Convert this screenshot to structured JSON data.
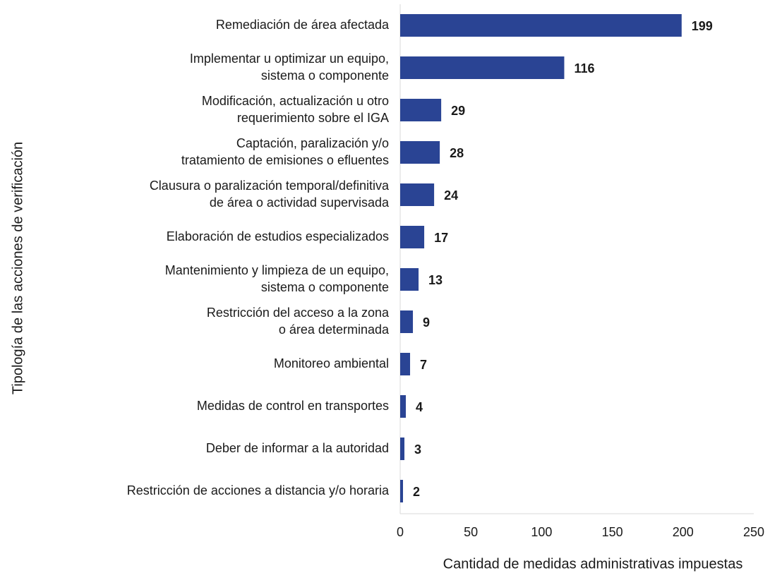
{
  "chart_data": {
    "type": "bar",
    "orientation": "horizontal",
    "xlabel": "Cantidad de medidas administrativas impuestas",
    "ylabel": "Tipología de las acciones de verificación",
    "categories": [
      [
        "Remediación de área afectada"
      ],
      [
        "Implementar u optimizar un equipo,",
        "sistema o componente"
      ],
      [
        "Modificación, actualización u otro",
        "requerimiento sobre el IGA"
      ],
      [
        "Captación, paralización y/o",
        "tratamiento de emisiones o efluentes"
      ],
      [
        "Clausura o paralización temporal/definitiva",
        "de área o actividad supervisada"
      ],
      [
        "Elaboración de estudios especializados"
      ],
      [
        "Mantenimiento y limpieza de un equipo,",
        "sistema o componente"
      ],
      [
        "Restricción del acceso a la zona",
        "o área determinada"
      ],
      [
        "Monitoreo ambiental"
      ],
      [
        "Medidas de control en transportes"
      ],
      [
        "Deber de informar a la autoridad"
      ],
      [
        "Restricción de acciones a distancia y/o horaria"
      ]
    ],
    "values": [
      199,
      116,
      29,
      28,
      24,
      17,
      13,
      9,
      7,
      4,
      3,
      2
    ],
    "color": "#2a4494",
    "xlim": [
      0,
      250
    ],
    "xticks": [
      0,
      50,
      100,
      150,
      200,
      250
    ]
  }
}
